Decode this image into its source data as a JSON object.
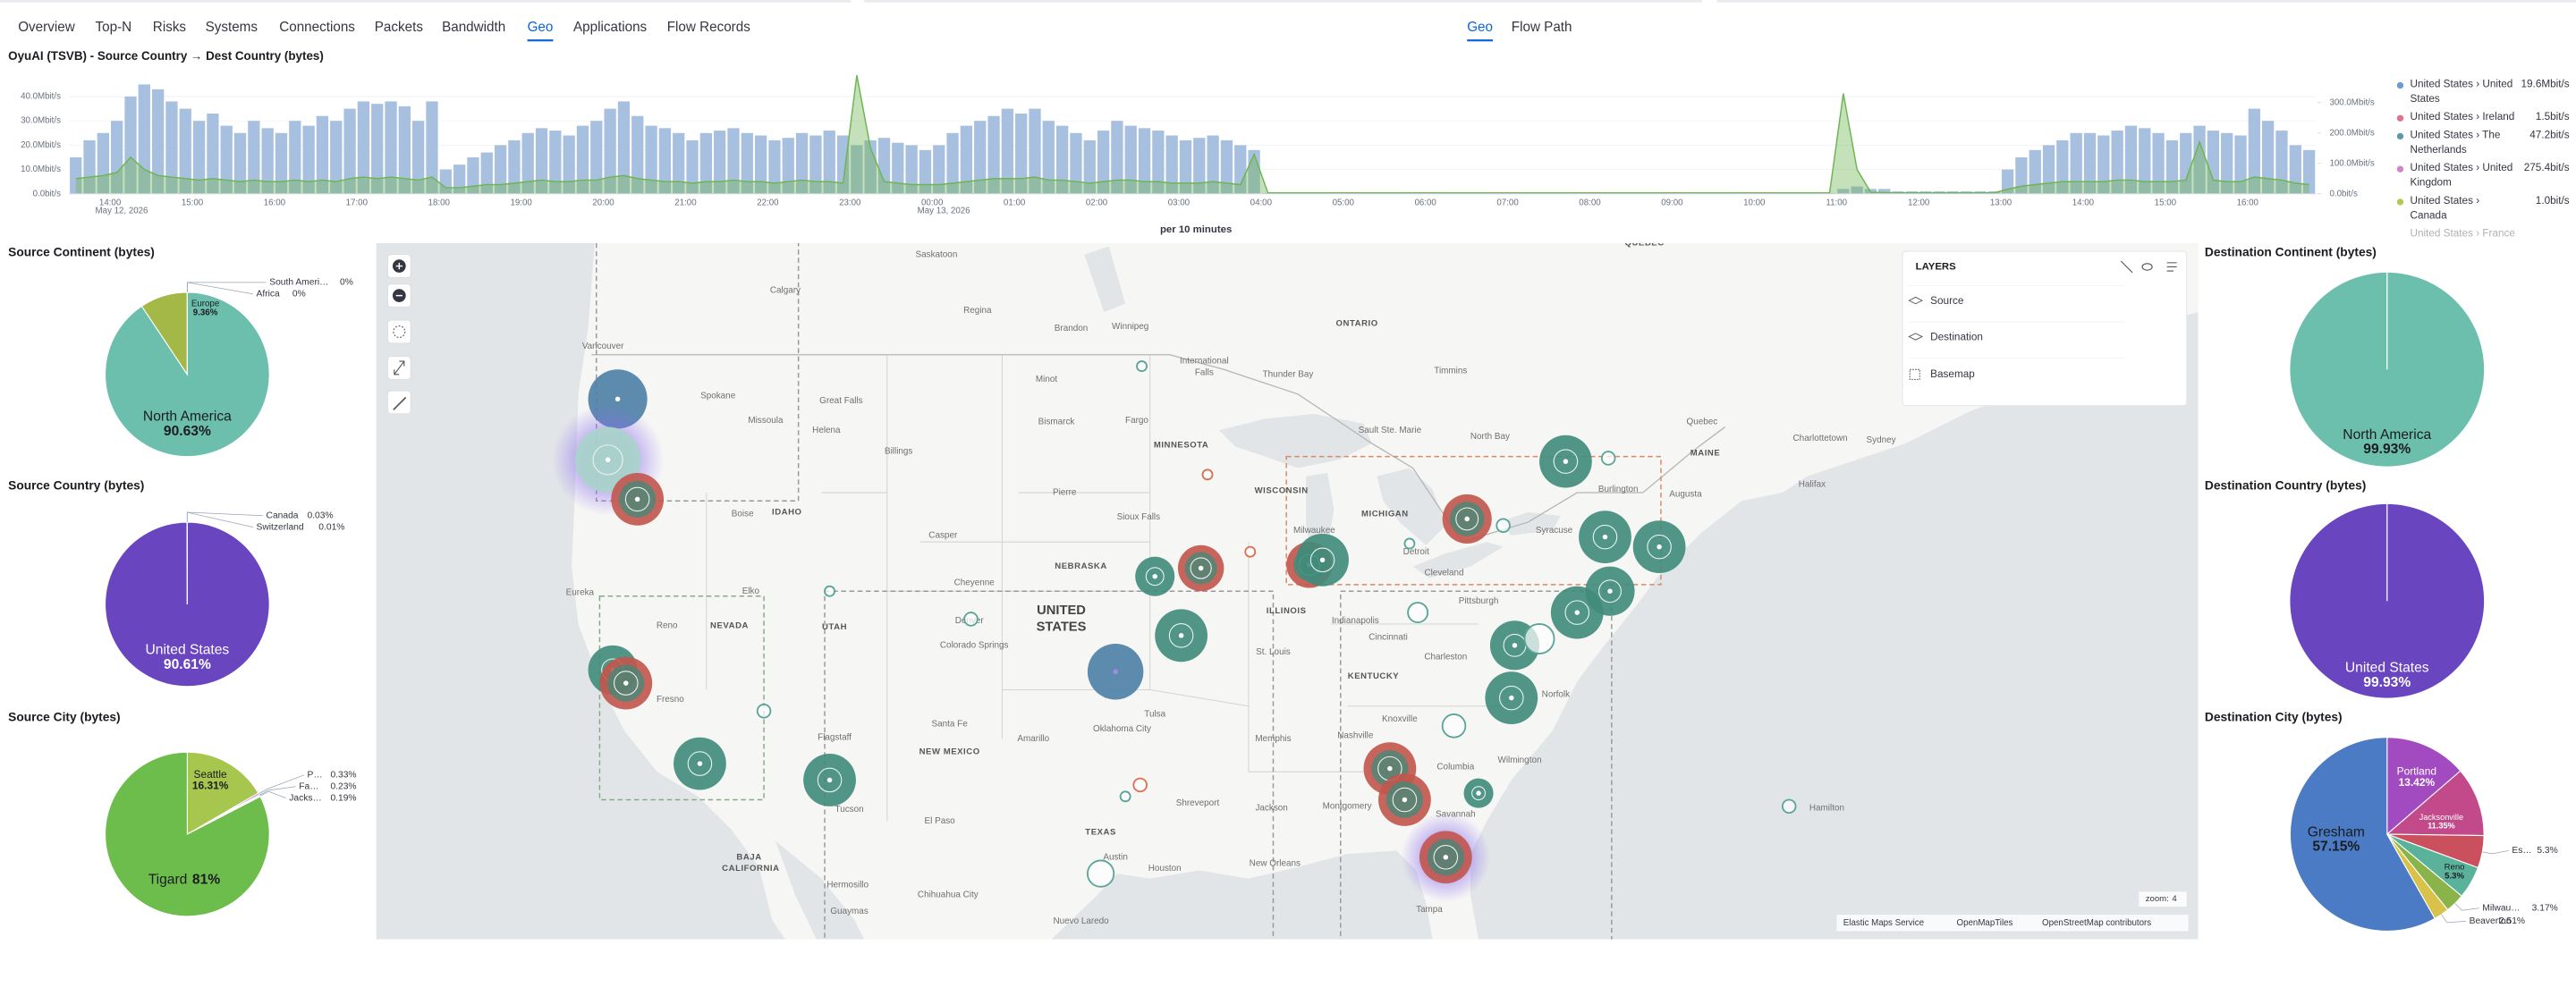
{
  "nav": {
    "tabs": [
      "Overview",
      "Top-N",
      "Risks",
      "Systems",
      "Connections",
      "Packets",
      "Bandwidth",
      "Geo",
      "Applications",
      "Flow Records"
    ],
    "active_tab": 7,
    "subtabs": [
      "Geo",
      "Flow Path"
    ],
    "active_subtab": 0
  },
  "timeseries": {
    "title": "OyuAI (TSVB) - Source Country → Dest Country (bytes)",
    "bars": [
      15,
      22,
      25,
      30,
      40,
      45,
      43,
      38,
      35,
      30,
      33,
      28,
      25,
      30,
      27,
      25,
      30,
      28,
      32,
      30,
      35,
      38,
      37,
      38,
      36,
      30,
      38,
      10,
      12,
      15,
      17,
      20,
      22,
      25,
      27,
      26,
      24,
      28,
      30,
      35,
      38,
      32,
      28,
      27,
      25,
      22,
      25,
      26,
      27,
      25,
      24,
      22,
      23,
      25,
      24,
      26,
      24,
      20,
      22,
      23,
      21,
      20,
      18,
      20,
      25,
      28,
      30,
      32,
      35,
      33,
      35,
      30,
      28,
      25,
      22,
      26,
      30,
      28,
      27,
      26,
      24,
      22,
      23,
      24,
      22,
      20,
      18,
      0.3,
      0.3,
      0.3,
      0.3,
      0.3,
      0.3,
      0.3,
      0.3,
      0.3,
      0.3,
      0.3,
      0.3,
      0.3,
      0.3,
      0.3,
      0.3,
      0.3,
      0.3,
      0.3,
      0.3,
      0.3,
      0.3,
      0.3,
      0.3,
      0.3,
      0.3,
      0.3,
      0.3,
      0.3,
      0.3,
      0.3,
      0.3,
      0.3,
      0.3,
      0.3,
      0.3,
      0.3,
      0.3,
      0.3,
      0.3,
      0.3,
      0.3,
      2,
      3,
      2,
      2,
      1,
      1,
      1,
      1,
      1,
      1,
      1,
      1,
      10,
      15,
      18,
      20,
      22,
      25,
      25,
      24,
      26,
      28,
      27,
      25,
      22,
      25,
      28,
      26,
      25,
      24,
      35,
      30,
      26,
      20,
      18
    ],
    "bar_color": "#a8c0e0",
    "line": [
      50,
      55,
      60,
      70,
      120,
      80,
      60,
      55,
      50,
      45,
      50,
      45,
      40,
      45,
      40,
      40,
      45,
      40,
      45,
      40,
      50,
      55,
      50,
      55,
      50,
      45,
      55,
      20,
      20,
      25,
      30,
      30,
      35,
      40,
      45,
      40,
      40,
      45,
      45,
      55,
      60,
      50,
      45,
      40,
      40,
      35,
      40,
      40,
      45,
      40,
      40,
      35,
      40,
      45,
      40,
      40,
      35,
      390,
      150,
      40,
      35,
      30,
      30,
      30,
      35,
      40,
      45,
      50,
      50,
      50,
      55,
      45,
      45,
      40,
      35,
      40,
      45,
      45,
      40,
      40,
      35,
      35,
      35,
      40,
      35,
      30,
      130,
      3,
      3,
      3,
      3,
      3,
      3,
      3,
      3,
      3,
      3,
      3,
      3,
      3,
      3,
      3,
      3,
      3,
      3,
      3,
      3,
      3,
      3,
      3,
      3,
      3,
      3,
      3,
      3,
      3,
      3,
      3,
      3,
      3,
      3,
      3,
      3,
      3,
      3,
      3,
      3,
      3,
      3,
      330,
      80,
      5,
      4,
      3,
      3,
      3,
      3,
      3,
      3,
      3,
      3,
      15,
      25,
      30,
      35,
      40,
      40,
      40,
      40,
      45,
      45,
      40,
      40,
      40,
      45,
      170,
      45,
      40,
      40,
      55,
      50,
      45,
      35,
      30
    ],
    "line_color": "#6db553",
    "ylim": [
      0,
      50
    ],
    "yticks": [
      {
        "value": 0,
        "label": "0.0bit/s"
      },
      {
        "value": 10,
        "label": "10.0Mbit/s"
      },
      {
        "value": 20,
        "label": "20.0Mbit/s"
      },
      {
        "value": 30,
        "label": "30.0Mbit/s"
      },
      {
        "value": 40,
        "label": "40.0Mbit/s"
      }
    ],
    "y2lim": [
      0,
      400
    ],
    "y2ticks": [
      {
        "value": 0,
        "label": "0.0bit/s"
      },
      {
        "value": 100,
        "label": "100.0Mbit/s"
      },
      {
        "value": 200,
        "label": "200.0Mbit/s"
      },
      {
        "value": 300,
        "label": "300.0Mbit/s"
      }
    ],
    "xticks": [
      "14:00",
      "15:00",
      "16:00",
      "17:00",
      "18:00",
      "19:00",
      "20:00",
      "21:00",
      "22:00",
      "23:00",
      "00:00",
      "01:00",
      "02:00",
      "03:00",
      "04:00",
      "05:00",
      "06:00",
      "07:00",
      "08:00",
      "09:00",
      "10:00",
      "11:00",
      "12:00",
      "13:00",
      "14:00",
      "15:00",
      "16:00"
    ],
    "dates": [
      "May 12, 2026",
      "May 13, 2026"
    ],
    "xlabel": "per 10 minutes",
    "legend": [
      {
        "name": "United States › United States",
        "value": "19.6Mbit/s",
        "color": "#6b9bd1"
      },
      {
        "name": "United States › Ireland",
        "value": "1.5bit/s",
        "color": "#e0728c"
      },
      {
        "name": "United States › The Netherlands",
        "value": "47.2bit/s",
        "color": "#5f99a6"
      },
      {
        "name": "United States › United Kingdom",
        "value": "275.4bit/s",
        "color": "#d382c5"
      },
      {
        "name": "United States › Canada",
        "value": "1.0bit/s",
        "color": "#b3c94e"
      },
      {
        "name": "United States › France"
      }
    ]
  },
  "pies": [
    {
      "title": "Source Continent (bytes)",
      "names": [
        "North America",
        "Europe",
        "South Ameri…",
        "Africa"
      ],
      "values": [
        90.63,
        9.36,
        0,
        0
      ],
      "value_labels": [
        "90.63%",
        "9.36%",
        "0%",
        "0%"
      ],
      "colors": [
        "#6dbfad",
        "#a3b847",
        "#d36086",
        "#7c66c8"
      ]
    },
    {
      "title": "Source Country (bytes)",
      "names": [
        "United States",
        "Canada",
        "Switzerland"
      ],
      "values": [
        90.61,
        0.03,
        0.01
      ],
      "value_labels": [
        "90.61%",
        "0.03%",
        "0.01%"
      ],
      "colors": [
        "#6a45c0",
        "#c84f9a",
        "#d27c4e"
      ]
    },
    {
      "title": "Source City (bytes)",
      "names": [
        "Seattle",
        "P…",
        "Fa…",
        "Jacks…",
        "Tigard"
      ],
      "values": [
        16.31,
        0.33,
        0.23,
        0.19,
        81
      ],
      "value_labels": [
        "16.31%",
        "0.33%",
        "0.23%",
        "0.19%",
        "81%"
      ],
      "colors": [
        "#a7c64e",
        "#a24bc1",
        "#c24a8a",
        "#7a5fc9",
        "#6dbd4c"
      ]
    },
    {
      "title": "Destination Continent (bytes)",
      "names": [
        "North America"
      ],
      "values": [
        99.93
      ],
      "value_labels": [
        "99.93%"
      ],
      "colors": [
        "#6dbfad"
      ]
    },
    {
      "title": "Destination Country (bytes)",
      "names": [
        "United States"
      ],
      "values": [
        99.93
      ],
      "value_labels": [
        "99.93%"
      ],
      "colors": [
        "#6a45c0"
      ]
    },
    {
      "title": "Destination City (bytes)",
      "names": [
        "Portland",
        "Jacksonville",
        "Es…",
        "Reno",
        "Milwau…",
        "Beaverton",
        "Gresham"
      ],
      "values": [
        13.42,
        11.35,
        5.3,
        5.3,
        3.17,
        2.51,
        57.15
      ],
      "value_labels": [
        "13.42%",
        "11.35%",
        "5.3%",
        "5.3%",
        "3.17%",
        "2.51%",
        "57.15%"
      ],
      "colors": [
        "#a24bc1",
        "#c24a8a",
        "#c9505c",
        "#5ab29a",
        "#8ab44a",
        "#d9c24a",
        "#4a7bc4"
      ]
    }
  ],
  "map": {
    "labels": [
      "Saskatoon",
      "Regina",
      "Calgary",
      "Brandon",
      "Winnipeg",
      "Vancouver",
      "Spokane",
      "Great Falls",
      "Missoula",
      "Helena",
      "Billings",
      "Minot",
      "Bismarck",
      "Fargo",
      "Thunder Bay",
      "Timmins",
      "ONTARIO",
      "QUÉBEC",
      "Quebec",
      "MAINE",
      "Charlottetown",
      "Sydney",
      "Halifax",
      "Augusta",
      "Burlington",
      "Syracuse",
      "Sault Ste. Marie",
      "North Bay",
      "MINNESOTA",
      "WISCONSIN",
      "MICHIGAN",
      "Pierre",
      "Sioux Falls",
      "Boise",
      "IDAHO",
      "Casper",
      "Milwaukee",
      "Detroit",
      "Cleveland",
      "NEBRASKA",
      "Cheyenne",
      "Eureka",
      "Elko",
      "Reno",
      "NEVADA",
      "UTAH",
      "Denver",
      "UNITED",
      "STATES",
      "ILLINOIS",
      "Indianapolis",
      "Pittsburgh",
      "Cincinnati",
      "Colorado Springs",
      "St. Louis",
      "Charleston",
      "KENTUCKY",
      "Norfolk",
      "Fresno",
      "Santa Fe",
      "Tulsa",
      "Nashville",
      "Knoxville",
      "Oklahoma City",
      "Amarillo",
      "Memphis",
      "NEW MEXICO",
      "Wilmington",
      "Columbia",
      "Flagstaff",
      "Shreveport",
      "Jackson",
      "Montgomery",
      "El Paso",
      "Tucson",
      "TEXAS",
      "Savannah",
      "Austin",
      "Houston",
      "New Orleans",
      "BAJA",
      "CALIFORNIA",
      "Hermosillo",
      "Chihuahua City",
      "Guaymas",
      "Tampa",
      "Nuevo Laredo",
      "Hamilton",
      "International",
      "Falls"
    ],
    "layers": {
      "title": "LAYERS",
      "items": [
        "Source",
        "Destination",
        "Basemap"
      ]
    },
    "zoom_label": "zoom:",
    "zoom": 4,
    "attribution": [
      "Elastic Maps Service",
      "OpenMapTiles",
      "OpenStreetMap contributors"
    ]
  }
}
